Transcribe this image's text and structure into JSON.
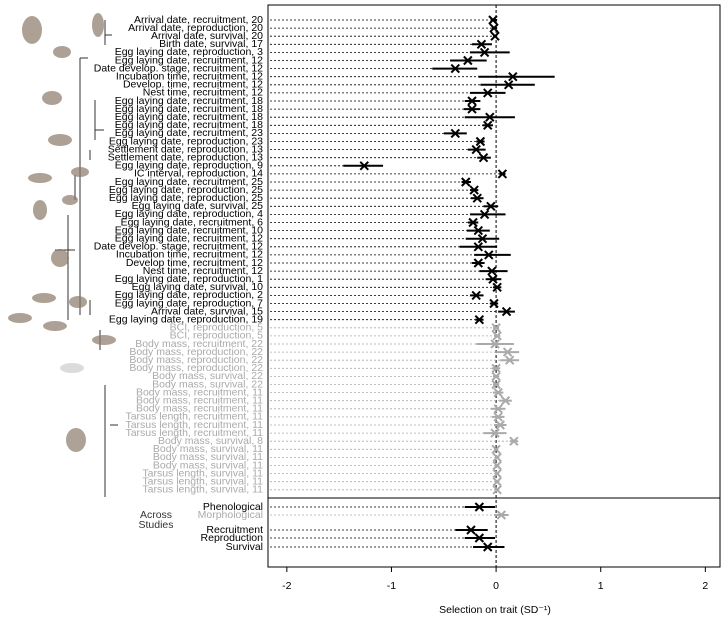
{
  "chart_data": {
    "type": "forest",
    "x_label": "Selection on trait (SD⁻¹)",
    "xlim": [
      -2.18,
      2.14
    ],
    "xticks": [
      -2,
      -1,
      0,
      1,
      2
    ],
    "series": [
      {
        "color": "#000000",
        "rows": [
          {
            "label": "Arrival date, recruitment, 20",
            "value": -0.03,
            "lo": -0.05,
            "hi": 0.01
          },
          {
            "label": "Arrival date, reproduction, 20",
            "value": -0.02,
            "lo": -0.04,
            "hi": 0.01
          },
          {
            "label": "Arrival date, survival, 20",
            "value": -0.01,
            "lo": -0.03,
            "hi": 0.01
          },
          {
            "label": "Birth date, survival, 17",
            "value": -0.14,
            "lo": -0.23,
            "hi": -0.04
          },
          {
            "label": "Egg laying date, reproduction, 3",
            "value": -0.11,
            "lo": -0.25,
            "hi": 0.13
          },
          {
            "label": "Egg laying date, recruitment, 12",
            "value": -0.27,
            "lo": -0.44,
            "hi": -0.09
          },
          {
            "label": "Date develop. stage, recruitment, 12",
            "value": -0.39,
            "lo": -0.61,
            "hi": -0.18
          },
          {
            "label": "Incubation time, recruitment, 12",
            "value": 0.16,
            "lo": -0.17,
            "hi": 0.56
          },
          {
            "label": "Develop. time, recruitment, 12",
            "value": 0.12,
            "lo": -0.15,
            "hi": 0.37
          },
          {
            "label": "Nest time, recruitment, 12",
            "value": -0.08,
            "lo": -0.25,
            "hi": 0.09
          },
          {
            "label": "Egg laying date, recruitment, 18",
            "value": -0.23,
            "lo": -0.3,
            "hi": -0.15
          },
          {
            "label": "Egg laying date, recruitment, 18",
            "value": -0.23,
            "lo": -0.31,
            "hi": -0.15
          },
          {
            "label": "Egg laying date, recruitment, 18",
            "value": -0.06,
            "lo": -0.3,
            "hi": 0.18
          },
          {
            "label": "Egg laying date, recruitment, 18",
            "value": -0.08,
            "lo": -0.13,
            "hi": -0.03
          },
          {
            "label": "Egg laying date, recruitment, 23",
            "value": -0.39,
            "lo": -0.5,
            "hi": -0.28
          },
          {
            "label": "Egg laying date, reproduction, 23",
            "value": -0.15,
            "lo": -0.19,
            "hi": -0.11
          },
          {
            "label": "Settlement date, reproduction, 13",
            "value": -0.19,
            "lo": -0.27,
            "hi": -0.1
          },
          {
            "label": "Settlement date, reproduction, 13",
            "value": -0.12,
            "lo": -0.18,
            "hi": -0.05
          },
          {
            "label": "Egg laying date, reproduction, 9",
            "value": -1.26,
            "lo": -1.46,
            "hi": -1.08
          },
          {
            "label": "IC interval, reproduction, 14",
            "value": 0.06,
            "lo": 0.03,
            "hi": 0.09
          },
          {
            "label": "Egg laying date, recruitment, 25",
            "value": -0.29,
            "lo": -0.33,
            "hi": -0.24
          },
          {
            "label": "Egg laying date, reproduction, 25",
            "value": -0.21,
            "lo": -0.25,
            "hi": -0.17
          },
          {
            "label": "Egg laying date, reproduction, 25",
            "value": -0.18,
            "lo": -0.24,
            "hi": -0.12
          },
          {
            "label": "Egg laying date, survival, 25",
            "value": -0.05,
            "lo": -0.12,
            "hi": 0.02
          },
          {
            "label": "Egg laying date, reproduction, 4",
            "value": -0.11,
            "lo": -0.25,
            "hi": 0.09
          },
          {
            "label": "Egg laying date, recruitment, 6",
            "value": -0.22,
            "lo": -0.27,
            "hi": -0.17
          },
          {
            "label": "Egg laying date, recruitment, 10",
            "value": -0.17,
            "lo": -0.28,
            "hi": -0.06
          },
          {
            "label": "Egg laying date, recruitment, 12",
            "value": -0.13,
            "lo": -0.29,
            "hi": 0.03
          },
          {
            "label": "Date develop. stage, recruitment, 12",
            "value": -0.17,
            "lo": -0.35,
            "hi": 0.01
          },
          {
            "label": "Incubation time, recruitment, 12",
            "value": -0.07,
            "lo": -0.21,
            "hi": 0.14
          },
          {
            "label": "Develop time, recruitment, 12",
            "value": -0.17,
            "lo": -0.23,
            "hi": -0.11
          },
          {
            "label": "Nest time, recruitment, 12",
            "value": -0.04,
            "lo": -0.16,
            "hi": 0.11
          },
          {
            "label": "Egg laying date, reproduction, 1",
            "value": -0.03,
            "lo": -0.1,
            "hi": 0.05
          },
          {
            "label": "Egg laying date, survival, 10",
            "value": 0.01,
            "lo": -0.03,
            "hi": 0.05
          },
          {
            "label": "Egg laying date, reproduction, 2",
            "value": -0.19,
            "lo": -0.25,
            "hi": -0.12
          },
          {
            "label": "Egg laying date, reproduction, 7",
            "value": -0.02,
            "lo": -0.06,
            "hi": 0.02
          },
          {
            "label": "Arrival date, survival, 15",
            "value": 0.1,
            "lo": 0.02,
            "hi": 0.18
          },
          {
            "label": "Egg laying date, reproduction, 19",
            "value": -0.16,
            "lo": -0.2,
            "hi": -0.12
          }
        ]
      },
      {
        "color": "#aaaaaa",
        "rows": [
          {
            "label": "BCI, reproduction, 5",
            "value": 0.0,
            "lo": -0.03,
            "hi": 0.03
          },
          {
            "label": "BCI, reproduction, 5",
            "value": 0.01,
            "lo": -0.02,
            "hi": 0.04
          },
          {
            "label": "Body mass, recruitment, 22",
            "value": -0.01,
            "lo": -0.19,
            "hi": 0.17
          },
          {
            "label": "Body mass, reproduction, 22",
            "value": 0.11,
            "lo": 0.0,
            "hi": 0.22
          },
          {
            "label": "Body mass, reproduction, 22",
            "value": 0.13,
            "lo": 0.04,
            "hi": 0.22
          },
          {
            "label": "Body mass, reproduction, 22",
            "value": 0.0,
            "lo": -0.04,
            "hi": 0.04
          },
          {
            "label": "Body mass, survival, 22",
            "value": 0.0,
            "lo": -0.03,
            "hi": 0.03
          },
          {
            "label": "Body mass, survival, 22",
            "value": 0.0,
            "lo": -0.03,
            "hi": 0.03
          },
          {
            "label": "Body mass, recruitment, 11",
            "value": 0.02,
            "lo": -0.03,
            "hi": 0.07
          },
          {
            "label": "Body mass, recruitment, 11",
            "value": 0.09,
            "lo": 0.03,
            "hi": 0.15
          },
          {
            "label": "Body mass, recruitment, 11",
            "value": 0.02,
            "lo": -0.05,
            "hi": 0.09
          },
          {
            "label": "Tarsus length, recruitment, 11",
            "value": 0.02,
            "lo": -0.04,
            "hi": 0.08
          },
          {
            "label": "Tarsus length, recruitment, 11",
            "value": 0.04,
            "lo": -0.02,
            "hi": 0.1
          },
          {
            "label": "Tarsus length, recruitment, 11",
            "value": -0.01,
            "lo": -0.12,
            "hi": 0.1
          },
          {
            "label": "Body mass, survival, 8",
            "value": 0.17,
            "lo": 0.13,
            "hi": 0.21
          },
          {
            "label": "Body mass, survival, 11",
            "value": 0.0,
            "lo": -0.02,
            "hi": 0.02
          },
          {
            "label": "Body mass, survival, 11",
            "value": 0.01,
            "lo": -0.01,
            "hi": 0.03
          },
          {
            "label": "Body mass, survival, 11",
            "value": 0.01,
            "lo": -0.01,
            "hi": 0.03
          },
          {
            "label": "Tarsus length, survival, 11",
            "value": 0.01,
            "lo": -0.01,
            "hi": 0.03
          },
          {
            "label": "Tarsus length, survival, 11",
            "value": 0.01,
            "lo": -0.01,
            "hi": 0.03
          },
          {
            "label": "Tarsus length, survival, 11",
            "value": 0.01,
            "lo": -0.01,
            "hi": 0.03
          }
        ]
      }
    ],
    "summary_title": [
      "Across",
      "Studies"
    ],
    "summary": [
      {
        "label": "Phenological",
        "value": -0.16,
        "lo": -0.3,
        "hi": -0.01,
        "color": "#000000"
      },
      {
        "label": "Morphological",
        "value": 0.05,
        "lo": -0.02,
        "hi": 0.12,
        "color": "#aaaaaa"
      },
      {
        "label": "Recruitment",
        "value": -0.24,
        "lo": -0.39,
        "hi": -0.08,
        "color": "#000000"
      },
      {
        "label": "Reproduction",
        "value": -0.16,
        "lo": -0.3,
        "hi": -0.01,
        "color": "#000000"
      },
      {
        "label": "Survival",
        "value": -0.08,
        "lo": -0.22,
        "hi": 0.08,
        "color": "#000000"
      }
    ]
  }
}
